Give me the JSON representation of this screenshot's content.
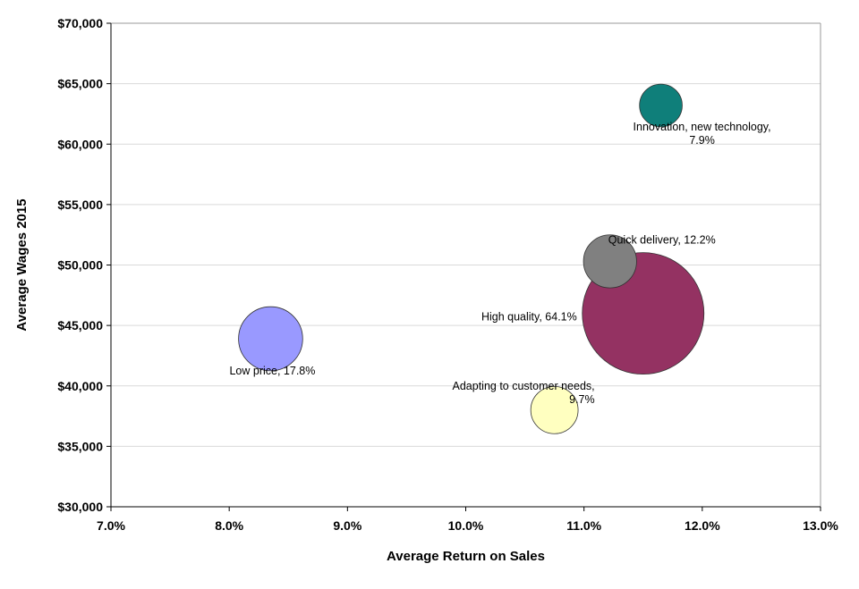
{
  "chart_data": {
    "type": "scatter",
    "subtype": "bubble",
    "title": "",
    "xlabel": "Average Return on Sales",
    "ylabel": "Average Wages 2015",
    "xlim": [
      0.07,
      0.13
    ],
    "ylim": [
      30000,
      70000
    ],
    "x_ticks": [
      0.07,
      0.08,
      0.09,
      0.1,
      0.11,
      0.12,
      0.13
    ],
    "x_tick_labels": [
      "7.0%",
      "8.0%",
      "9.0%",
      "10.0%",
      "11.0%",
      "12.0%",
      "13.0%"
    ],
    "y_ticks": [
      30000,
      35000,
      40000,
      45000,
      50000,
      55000,
      60000,
      65000,
      70000
    ],
    "y_tick_labels": [
      "$30,000",
      "$35,000",
      "$40,000",
      "$45,000",
      "$50,000",
      "$55,000",
      "$60,000",
      "$65,000",
      "$70,000"
    ],
    "grid": "horizontal",
    "legend": "none",
    "points": [
      {
        "label_lines": [
          "Innovation,  new technology,",
          "7.9%"
        ],
        "x": 0.1165,
        "y": 63200,
        "size": 7.9,
        "color": "#0f7f7a"
      },
      {
        "label_lines": [
          "Quick delivery,  12.2%"
        ],
        "x": 0.1122,
        "y": 50300,
        "size": 12.2,
        "color": "#808080"
      },
      {
        "label_lines": [
          "High quality, 64.1%"
        ],
        "x": 0.115,
        "y": 46000,
        "size": 64.1,
        "color": "#943262"
      },
      {
        "label_lines": [
          "Low price, 17.8%"
        ],
        "x": 0.0835,
        "y": 43900,
        "size": 17.8,
        "color": "#9999ff"
      },
      {
        "label_lines": [
          "Adapting to customer needs,",
          "9.7%"
        ],
        "x": 0.1075,
        "y": 38000,
        "size": 9.7,
        "color": "#ffffc0"
      }
    ]
  }
}
